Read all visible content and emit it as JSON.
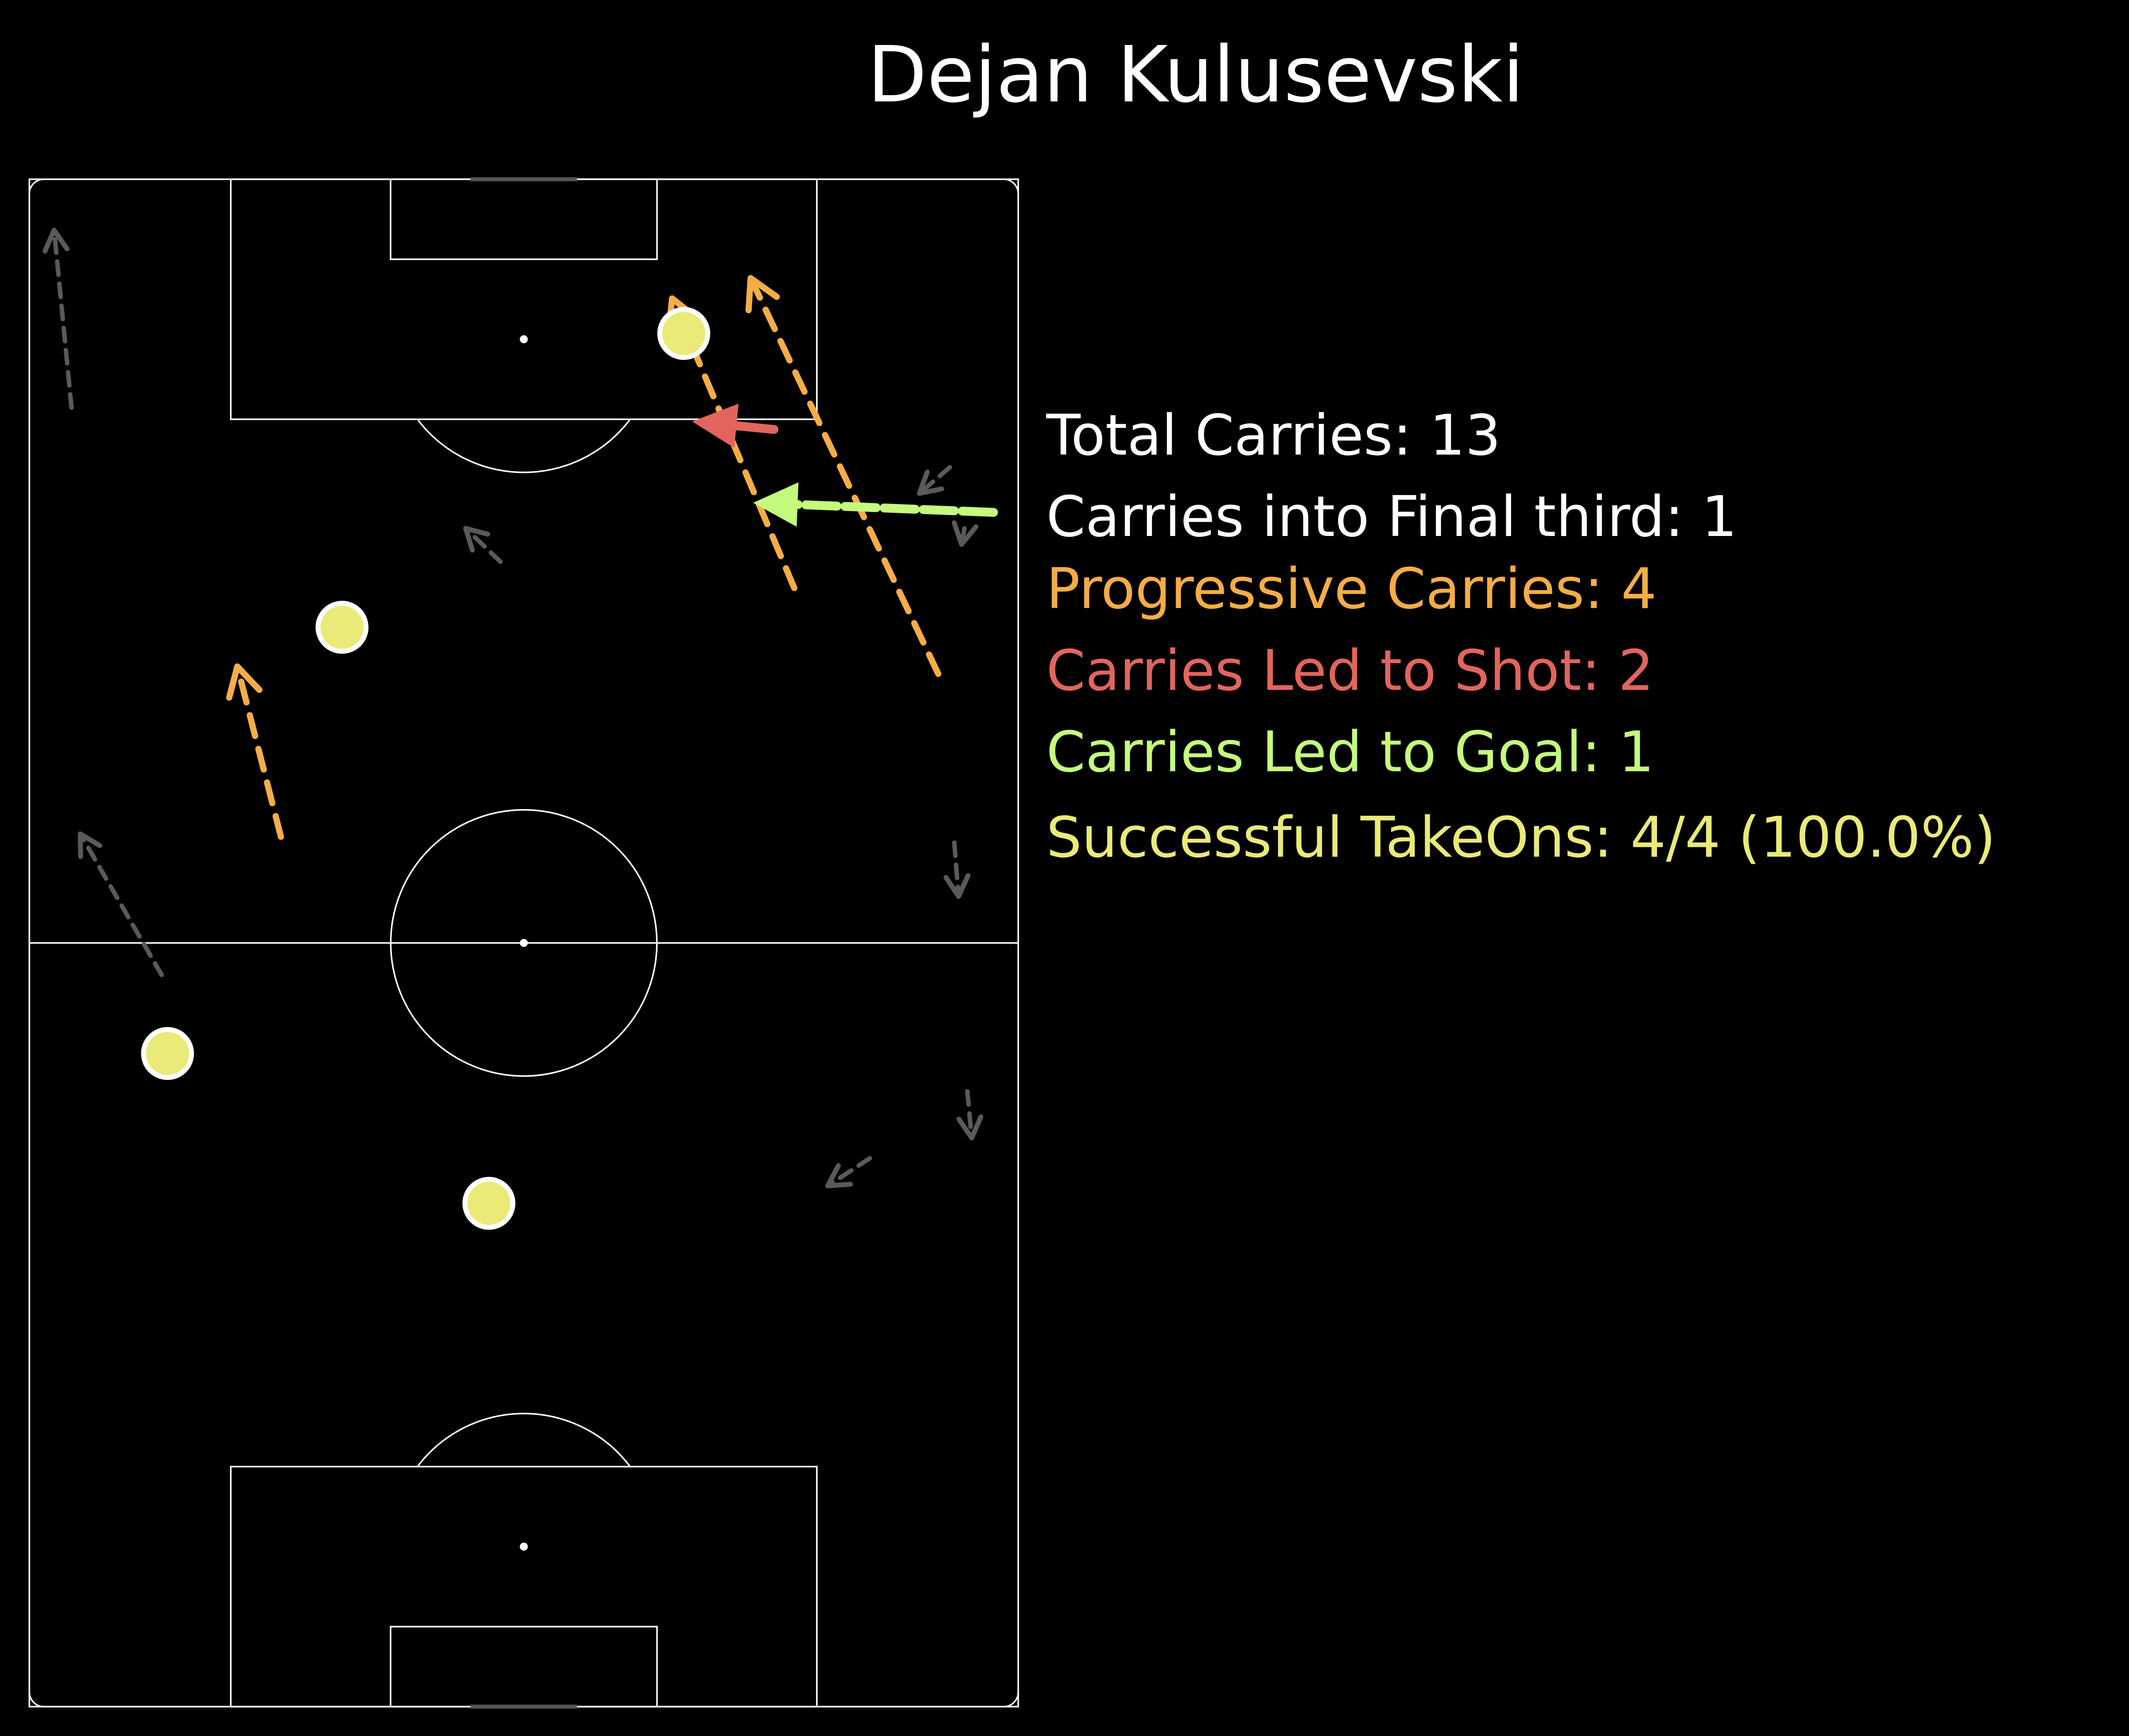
{
  "chart_data": {
    "type": "pitch-map",
    "title": "Dejan Kulusevski",
    "pitch": {
      "length": 105,
      "width": 68,
      "orientation": "vertical",
      "attacking": "up"
    },
    "stats": [
      {
        "label": "Total Carries: 13",
        "color": "#ffffff"
      },
      {
        "label": "Carries into Final third: 1",
        "color": "#ffffff"
      },
      {
        "label": "Progressive Carries: 4",
        "color": "#f5ad45"
      },
      {
        "label": "Carries Led to Shot: 2",
        "color": "#e2655d"
      },
      {
        "label": "Carries Led to Goal: 1",
        "color": "#c5fb7c"
      },
      {
        "label": "Successful TakeOns: 4/4 (100.0%)",
        "color": "#eaea79"
      }
    ],
    "colors": {
      "background": "#000000",
      "lines": "#ffffff",
      "carry": "#5a5a5a",
      "progressive": "#f5ad45",
      "shot": "#e2655d",
      "goal": "#c5fb7c",
      "takeon": "#eaea79"
    },
    "carries": [
      {
        "type": "carry",
        "x1": 2.9,
        "y1": 89.3,
        "x2": 1.7,
        "y2": 101.5
      },
      {
        "type": "carry",
        "x1": 32.4,
        "y1": 78.7,
        "x2": 30.0,
        "y2": 81.0
      },
      {
        "type": "carry",
        "x1": 63.3,
        "y1": 85.2,
        "x2": 61.2,
        "y2": 83.4
      },
      {
        "type": "carry",
        "x1": 64.3,
        "y1": 81.0,
        "x2": 64.1,
        "y2": 79.9
      },
      {
        "type": "carry",
        "x1": 9.1,
        "y1": 50.3,
        "x2": 3.5,
        "y2": 60.0
      },
      {
        "type": "carry",
        "x1": 63.6,
        "y1": 59.4,
        "x2": 63.9,
        "y2": 55.7
      },
      {
        "type": "carry",
        "x1": 64.5,
        "y1": 42.3,
        "x2": 64.8,
        "y2": 39.1
      },
      {
        "type": "carry",
        "x1": 57.8,
        "y1": 37.7,
        "x2": 54.9,
        "y2": 35.8
      },
      {
        "type": "progressive",
        "x1": 17.3,
        "y1": 59.8,
        "x2": 14.3,
        "y2": 71.5
      },
      {
        "type": "progressive",
        "x1": 52.6,
        "y1": 76.9,
        "x2": 44.2,
        "y2": 96.8
      },
      {
        "type": "progressive",
        "x1": 62.5,
        "y1": 71.0,
        "x2": 49.6,
        "y2": 98.2
      },
      {
        "type": "shot",
        "x1": 51.2,
        "y1": 87.8,
        "x2": 47.1,
        "y2": 88.2
      },
      {
        "type": "goal",
        "x1": 66.3,
        "y1": 82.1,
        "x2": 51.3,
        "y2": 82.7
      }
    ],
    "takeons": [
      {
        "x": 45.0,
        "y": 94.4
      },
      {
        "x": 21.5,
        "y": 74.2
      },
      {
        "x": 9.5,
        "y": 44.9
      },
      {
        "x": 31.6,
        "y": 34.6
      }
    ]
  }
}
